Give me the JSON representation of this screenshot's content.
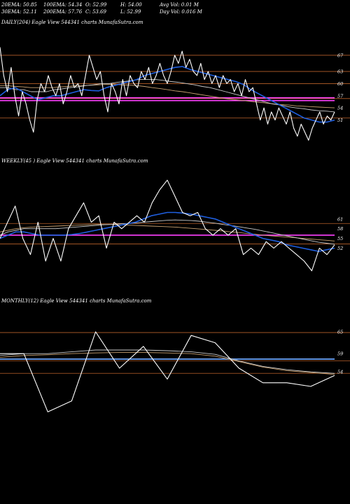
{
  "header": {
    "ema20": "20EMA: 50.85",
    "ema100": "100EMA: 54.34",
    "open": "O: 52.99",
    "high": "H: 54.00",
    "avg_vol": "Avg Vol: 0.01 M",
    "ema30": "30EMA: 52.11",
    "ema200": "200EMA: 57.76",
    "close": "C: 53.69",
    "low": "L: 52.99",
    "day_vol": "Day Vol: 0.016  M"
  },
  "colors": {
    "price": "#ffffff",
    "ema_blue": "#1f5fe0",
    "ema_soft": "#cccccc",
    "ema_tan": "#c8a070",
    "hline": "#b8602a",
    "magenta": "#ff40ff",
    "light_blue": "#6fa8ff"
  },
  "chart_data": [
    {
      "type": "line",
      "title": "DAILY(204) Eagle  View  544341 charts MunafaSutra.com",
      "ylim": [
        44,
        72
      ],
      "yticks": [
        {
          "value": 67,
          "label": "67"
        },
        {
          "value": 63,
          "label": "63"
        },
        {
          "value": 60,
          "label": "60"
        },
        {
          "value": 57,
          "label": "57"
        },
        {
          "value": 54,
          "label": "54"
        },
        {
          "value": 51,
          "label": "51"
        }
      ],
      "hlines": [
        67,
        63,
        60,
        56.3,
        51.5
      ],
      "magenta_lines": [
        56.5,
        55.8
      ],
      "series": [
        {
          "role": "price",
          "values": [
            69,
            62,
            58,
            64,
            57,
            52,
            58,
            55,
            51,
            48,
            56,
            60,
            58,
            62,
            59,
            57,
            60,
            55,
            58,
            62,
            59,
            60,
            57,
            62,
            67,
            64,
            61,
            63,
            57,
            53,
            60,
            58,
            55,
            61,
            57,
            62,
            60,
            59,
            63,
            61,
            64,
            60,
            62,
            65,
            62,
            60,
            63,
            67,
            65,
            68,
            64,
            66,
            63,
            62,
            65,
            61,
            63,
            60,
            62,
            59,
            62,
            60,
            61,
            58,
            60,
            57,
            61,
            58,
            59,
            55,
            51,
            54,
            50,
            53,
            51,
            54,
            52,
            50,
            53,
            49,
            47,
            50,
            48,
            46,
            49,
            51,
            53,
            50,
            52,
            51,
            53
          ]
        },
        {
          "role": "ema_blue",
          "values": [
            57,
            58.5,
            59,
            58,
            57,
            56,
            56.5,
            57,
            57,
            57.5,
            58,
            58.5,
            58.3,
            58.2,
            59,
            59.5,
            60,
            60.5,
            61,
            62,
            62.5,
            63,
            63.5,
            64,
            64.2,
            63.5,
            63,
            62.5,
            62,
            61.5,
            61,
            60.5,
            59.8,
            58.5,
            57.5,
            56.5,
            55.5,
            54.5,
            53.5,
            52.5,
            51.5,
            51,
            50.5,
            50.5,
            51
          ]
        },
        {
          "role": "ema_soft",
          "values": [
            59,
            59,
            58.5,
            58.5,
            58,
            58,
            58,
            58.5,
            58.7,
            59,
            59.2,
            59.5,
            59.7,
            60,
            60,
            60.3,
            60.5,
            60.8,
            61,
            61,
            61,
            60.8,
            60.5,
            60.3,
            60,
            59.7,
            59.3,
            59,
            58.5,
            58,
            57.5,
            57,
            56.5,
            56,
            55.5,
            55,
            54.7,
            54.3,
            54,
            53.8,
            53.5,
            53.3,
            53.2,
            53
          ]
        },
        {
          "role": "ema_tan",
          "values": [
            59.5,
            59.5,
            59.3,
            59.2,
            59,
            59,
            59,
            59,
            59.2,
            59.3,
            59.5,
            59.5,
            59.6,
            59.7,
            59.8,
            59.8,
            59.7,
            59.6,
            59.5,
            59.3,
            59,
            58.8,
            58.5,
            58.2,
            58,
            57.7,
            57.4,
            57.1,
            56.8,
            56.5,
            56.2,
            56,
            55.8,
            55.6,
            55.4,
            55.2,
            55,
            54.8,
            54.7,
            54.5,
            54.4,
            54.3,
            54.2,
            54.1,
            54
          ]
        }
      ]
    },
    {
      "type": "line",
      "title": "WEEKLY(45                   ) Eagle  View  544341 charts MunafaSutra.com",
      "ylim": [
        40,
        75
      ],
      "yticks": [
        {
          "value": 61,
          "label": "61"
        },
        {
          "value": 58,
          "label": "58"
        },
        {
          "value": 55,
          "label": "55"
        },
        {
          "value": 52,
          "label": "52"
        }
      ],
      "hlines": [
        59.6,
        53.3
      ],
      "magenta_lines": [
        56
      ],
      "series": [
        {
          "role": "price",
          "values": [
            55,
            60,
            65,
            55,
            50,
            60,
            48,
            55,
            48,
            58,
            62,
            66,
            60,
            62,
            52,
            60,
            58,
            60,
            62,
            60,
            66,
            70,
            73,
            68,
            63,
            62,
            63,
            58,
            56,
            58,
            56,
            58,
            50,
            52,
            50,
            54,
            52,
            54,
            52,
            50,
            48,
            45,
            52,
            50,
            53
          ]
        },
        {
          "role": "ema_blue",
          "values": [
            55,
            56,
            57,
            57,
            56.5,
            56,
            56,
            56,
            56,
            56.2,
            56.5,
            57,
            57.5,
            58,
            58.5,
            59,
            59.5,
            60,
            61,
            62,
            62.5,
            63,
            63,
            62.8,
            62.5,
            62,
            61.5,
            61,
            60,
            59,
            58,
            57,
            56,
            55,
            54.5,
            54,
            53,
            52.5,
            52,
            51.5,
            51,
            51.5,
            52
          ]
        },
        {
          "role": "ema_soft",
          "values": [
            56,
            57,
            57.5,
            58,
            58,
            58,
            58,
            58,
            58.2,
            58.4,
            58.6,
            58.8,
            59,
            59.2,
            59.3,
            59.5,
            59.6,
            59.8,
            60,
            60.2,
            60.4,
            60.6,
            60.7,
            60.6,
            60.5,
            60.3,
            60,
            59.7,
            59.3,
            59,
            58.6,
            58.2,
            57.8,
            57.3,
            56.8,
            56.3,
            55.8,
            55.3,
            54.8,
            54.3,
            53.8,
            53.5,
            53.2
          ]
        },
        {
          "role": "ema_tan",
          "values": [
            57,
            57.5,
            58,
            58.3,
            58.5,
            58.6,
            58.7,
            58.8,
            58.9,
            59,
            59.1,
            59.2,
            59.3,
            59.3,
            59.3,
            59.2,
            59.1,
            59,
            58.9,
            58.8,
            58.7,
            58.6,
            58.5,
            58.3,
            58.1,
            57.9,
            57.7,
            57.5,
            57.3,
            57,
            56.8,
            56.5,
            56.3,
            56,
            55.8,
            55.6,
            55.4,
            55.2,
            55,
            54.8,
            54.6,
            54.4,
            54.2
          ]
        }
      ]
    },
    {
      "type": "line",
      "title": "MONTHLY(12) Eagle  View  544341 charts MunafaSutra.com",
      "ylim": [
        35,
        70
      ],
      "yticks": [
        {
          "value": 65,
          "label": "65"
        },
        {
          "value": 59,
          "label": "59"
        },
        {
          "value": 54,
          "label": "54"
        }
      ],
      "hlines": [
        64.8,
        57,
        53.6
      ],
      "magenta_lines": [],
      "light_blue_line": 57.5,
      "series": [
        {
          "role": "price",
          "values": [
            59,
            59,
            43,
            46,
            65,
            55,
            61,
            52,
            64,
            62,
            55,
            51,
            51,
            50,
            53
          ]
        },
        {
          "role": "ema_soft",
          "values": [
            58.5,
            59,
            59,
            59.5,
            60,
            60,
            60,
            59.8,
            59.5,
            58.8,
            57,
            55.5,
            54.6,
            54,
            53.6
          ]
        },
        {
          "role": "ema_tan",
          "values": [
            58,
            58.5,
            58.7,
            59,
            59.2,
            59.3,
            59.3,
            59.2,
            59,
            58.3,
            56.8,
            55.3,
            54.3,
            53.8,
            53.3
          ]
        }
      ]
    }
  ]
}
